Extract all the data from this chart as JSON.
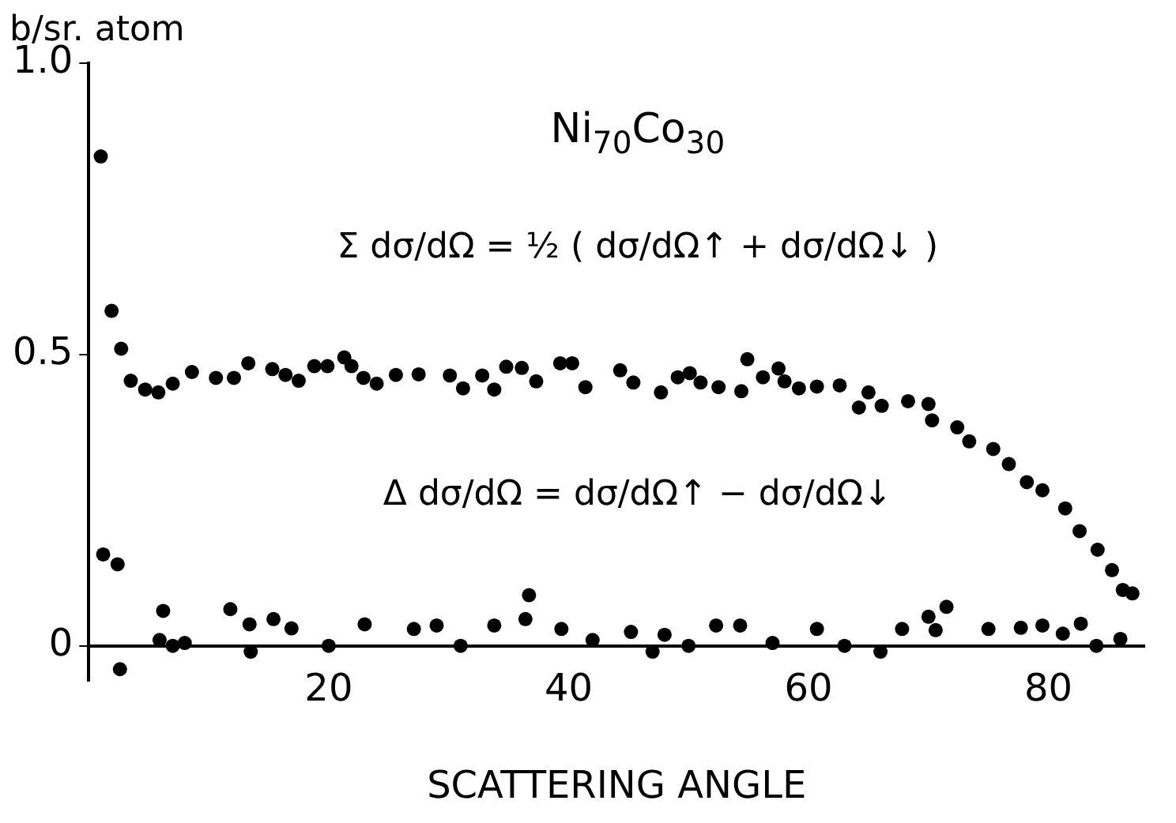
{
  "chart_data": {
    "type": "scatter",
    "ylabel": "b/sr. atom",
    "xlabel": "SCATTERING ANGLE",
    "annotations": [
      "Ni$_{70}$Co$_{30}$",
      "Σ dσ/dΩ = ½ ( dσ/dΩ↑ + dσ/dΩ↓ )",
      "Δ dσ/dΩ = dσ/dΩ↑ − dσ/dΩ↓"
    ],
    "xlim": [
      0,
      88
    ],
    "xticks": [
      20,
      40,
      60,
      80
    ],
    "ylim": [
      -0.06,
      1.0
    ],
    "yticks": [
      0,
      {
        "value": 0.5,
        "label": "0.5"
      },
      {
        "value": 1.0,
        "label": "1.0"
      }
    ],
    "grid": false,
    "legend": false,
    "marker": "circle",
    "series": [
      {
        "color": "#000000",
        "x": [
          1.0,
          1.9,
          2.7,
          3.5,
          4.7,
          5.8,
          7.0,
          8.6,
          10.6,
          12.1,
          13.3,
          15.3,
          16.4,
          17.5,
          18.8,
          19.9,
          21.3,
          21.9,
          22.9,
          24.0,
          25.6,
          27.5,
          30.1,
          31.2,
          32.8,
          33.8,
          34.8,
          36.1,
          37.3,
          39.3,
          40.3,
          41.4,
          44.3,
          45.4,
          47.7,
          49.1,
          50.1,
          51.0,
          52.5,
          54.4,
          54.9,
          56.2,
          57.5,
          58.0,
          59.2,
          60.7,
          62.6,
          64.2,
          65.0,
          66.1,
          68.3,
          70.0,
          70.3,
          72.4,
          73.4,
          75.4,
          76.7,
          78.2,
          79.5,
          81.4,
          82.6,
          84.1,
          85.3,
          86.2,
          87.0
        ],
        "values": [
          0.84,
          0.575,
          0.51,
          0.455,
          0.44,
          0.435,
          0.45,
          0.47,
          0.46,
          0.46,
          0.485,
          0.475,
          0.465,
          0.455,
          0.48,
          0.48,
          0.495,
          0.48,
          0.46,
          0.45,
          0.465,
          0.466,
          0.464,
          0.442,
          0.464,
          0.44,
          0.479,
          0.477,
          0.454,
          0.485,
          0.485,
          0.444,
          0.473,
          0.452,
          0.435,
          0.461,
          0.468,
          0.452,
          0.444,
          0.437,
          0.492,
          0.461,
          0.476,
          0.454,
          0.442,
          0.445,
          0.447,
          0.409,
          0.435,
          0.412,
          0.42,
          0.415,
          0.387,
          0.375,
          0.351,
          0.338,
          0.312,
          0.281,
          0.267,
          0.236,
          0.197,
          0.165,
          0.13,
          0.096,
          0.09
        ]
      },
      {
        "color": "#000000",
        "x": [
          1.2,
          2.4,
          2.6,
          5.9,
          6.2,
          7.0,
          8.0,
          11.8,
          13.4,
          13.5,
          15.4,
          16.9,
          20.0,
          23.0,
          26.8,
          27.1,
          29.0,
          31.0,
          33.8,
          36.4,
          36.7,
          39.4,
          42.0,
          45.2,
          47.0,
          48.0,
          50.0,
          52.3,
          54.3,
          57.0,
          60.7,
          63.0,
          66.0,
          67.8,
          70.0,
          70.6,
          71.5,
          75.0,
          77.7,
          79.5,
          81.2,
          82.7,
          84.0,
          86.0
        ],
        "values": [
          0.157,
          0.14,
          -0.04,
          0.01,
          0.06,
          0.0,
          0.005,
          0.063,
          0.037,
          -0.01,
          0.046,
          0.03,
          0.0,
          0.037,
          null,
          0.029,
          0.035,
          0.0,
          0.035,
          0.046,
          0.087,
          0.029,
          0.01,
          0.024,
          -0.01,
          0.019,
          0.0,
          0.035,
          0.035,
          0.005,
          0.029,
          0.0,
          -0.01,
          0.029,
          0.05,
          0.027,
          0.067,
          0.029,
          0.031,
          0.035,
          0.021,
          0.038,
          0.0,
          0.012
        ]
      }
    ]
  }
}
